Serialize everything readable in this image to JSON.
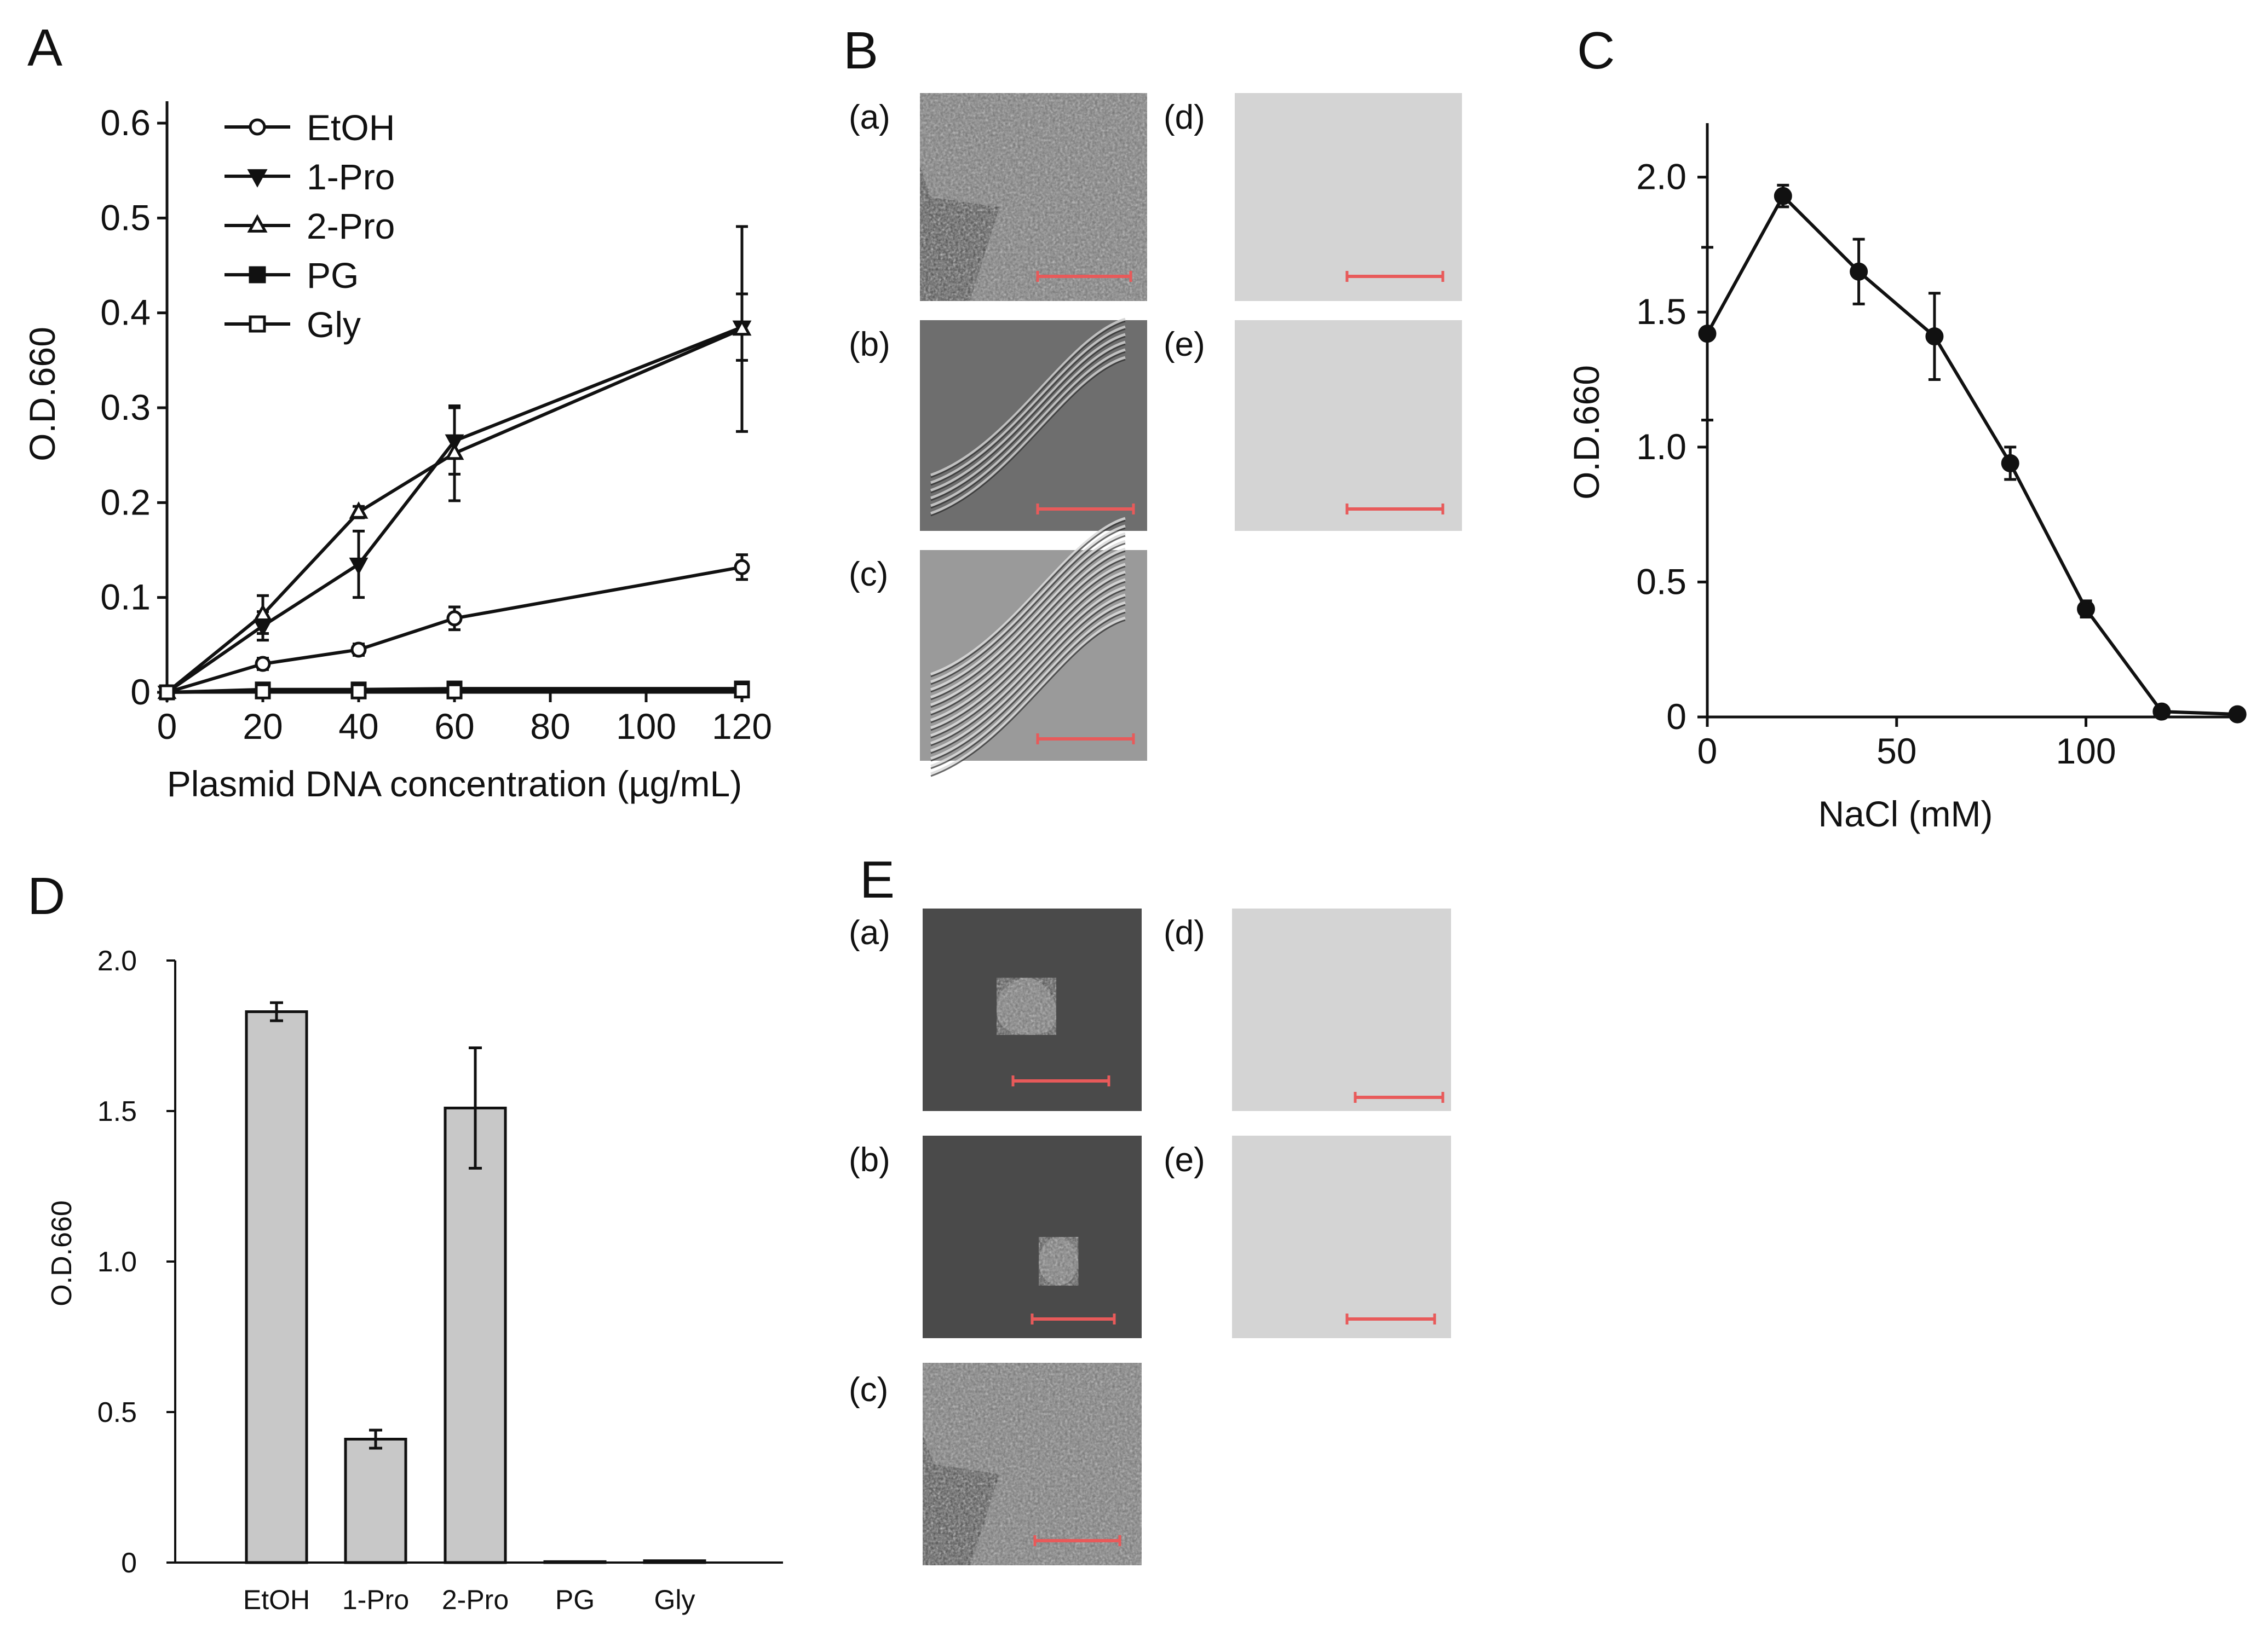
{
  "panel_letters": {
    "A": "A",
    "B": "B",
    "C": "C",
    "D": "D",
    "E": "E"
  },
  "chart_data": [
    {
      "panel": "A",
      "type": "line",
      "title": "",
      "xlabel": "Plasmid DNA concentration (µg/mL)",
      "ylabel": "O.D.660",
      "x": [
        0,
        20,
        40,
        60,
        120
      ],
      "xticks": [
        "0",
        "20",
        "40",
        "60",
        "80",
        "100",
        "120"
      ],
      "xtick_values": [
        0,
        20,
        40,
        60,
        80,
        100,
        120
      ],
      "yticks": [
        "0",
        "0.1",
        "0.2",
        "0.3",
        "0.4",
        "0.5",
        "0.6"
      ],
      "ytick_values": [
        0,
        0.1,
        0.2,
        0.3,
        0.4,
        0.5,
        0.6
      ],
      "xlim": [
        0,
        120
      ],
      "ylim": [
        0,
        0.6
      ],
      "legend_position": "top-left",
      "series": [
        {
          "name": "EtOH",
          "marker": "open-circle",
          "values": [
            0,
            0.03,
            0.045,
            0.078,
            0.132
          ],
          "errors": [
            0,
            0.006,
            0.006,
            0.012,
            0.013
          ]
        },
        {
          "name": "1-Pro",
          "marker": "filled-triangle-down",
          "values": [
            0,
            0.07,
            0.135,
            0.265,
            0.385
          ],
          "errors": [
            0,
            0.015,
            0.035,
            0.035,
            0.035
          ]
        },
        {
          "name": "2-Pro",
          "marker": "open-triangle-up",
          "values": [
            0,
            0.082,
            0.19,
            0.252,
            0.383
          ],
          "errors": [
            0,
            0.02,
            0.006,
            0.05,
            0.108
          ]
        },
        {
          "name": "PG",
          "marker": "filled-square",
          "values": [
            0,
            0.003,
            0.003,
            0.004,
            0.004
          ],
          "errors": [
            0,
            0,
            0,
            0,
            0
          ]
        },
        {
          "name": "Gly",
          "marker": "open-square",
          "values": [
            0,
            0.001,
            0.001,
            0.001,
            0.002
          ],
          "errors": [
            0,
            0,
            0,
            0,
            0
          ]
        }
      ]
    },
    {
      "panel": "C",
      "type": "line",
      "title": "",
      "xlabel": "NaCl (mM)",
      "ylabel": "O.D.660",
      "x": [
        0,
        20,
        40,
        60,
        80,
        100,
        120,
        140
      ],
      "xticks": [
        "0",
        "50",
        "100"
      ],
      "xtick_values": [
        0,
        50,
        100
      ],
      "yticks": [
        "0",
        "0.5",
        "1.0",
        "1.5",
        "2.0"
      ],
      "ytick_values": [
        0,
        0.5,
        1.0,
        1.5,
        2.0
      ],
      "xlim": [
        0,
        142
      ],
      "ylim": [
        0,
        2.2
      ],
      "series": [
        {
          "name": "NaCl",
          "marker": "filled-circle",
          "values": [
            1.42,
            1.93,
            1.65,
            1.41,
            0.94,
            0.4,
            0.02,
            0.01
          ],
          "errors": [
            0.32,
            0.04,
            0.12,
            0.16,
            0.06,
            0.03,
            0,
            0
          ]
        }
      ]
    },
    {
      "panel": "D",
      "type": "bar",
      "title": "",
      "xlabel": "",
      "ylabel": "O.D.660",
      "categories": [
        "EtOH",
        "1-Pro",
        "2-Pro",
        "PG",
        "Gly"
      ],
      "values": [
        1.83,
        0.41,
        1.51,
        0.003,
        0.006
      ],
      "errors": [
        0.03,
        0.03,
        0.2,
        0,
        0
      ],
      "yticks": [
        "0",
        "0.5",
        "1.0",
        "1.5",
        "2.0"
      ],
      "ytick_values": [
        0,
        0.5,
        1.0,
        1.5,
        2.0
      ],
      "ylim": [
        0,
        2.0
      ],
      "bar_color": "#c8c8c8"
    }
  ],
  "micrographs": {
    "B": [
      {
        "label": "(a)",
        "kind": "dark-aggregate"
      },
      {
        "label": "(b)",
        "kind": "dic-fibers"
      },
      {
        "label": "(c)",
        "kind": "dic-bundles"
      },
      {
        "label": "(d)",
        "kind": "blank"
      },
      {
        "label": "(e)",
        "kind": "blank"
      }
    ],
    "E": [
      {
        "label": "(a)",
        "kind": "dark-cluster"
      },
      {
        "label": "(b)",
        "kind": "dark-small-cluster"
      },
      {
        "label": "(c)",
        "kind": "dark-aggregate"
      },
      {
        "label": "(d)",
        "kind": "blank"
      },
      {
        "label": "(e)",
        "kind": "blank"
      }
    ]
  },
  "colors": {
    "scale_bar": "#e85a5a",
    "dark_bg": "#4a4a4a",
    "blank_bg": "#d4d4d4",
    "bar": "#c8c8c8"
  }
}
